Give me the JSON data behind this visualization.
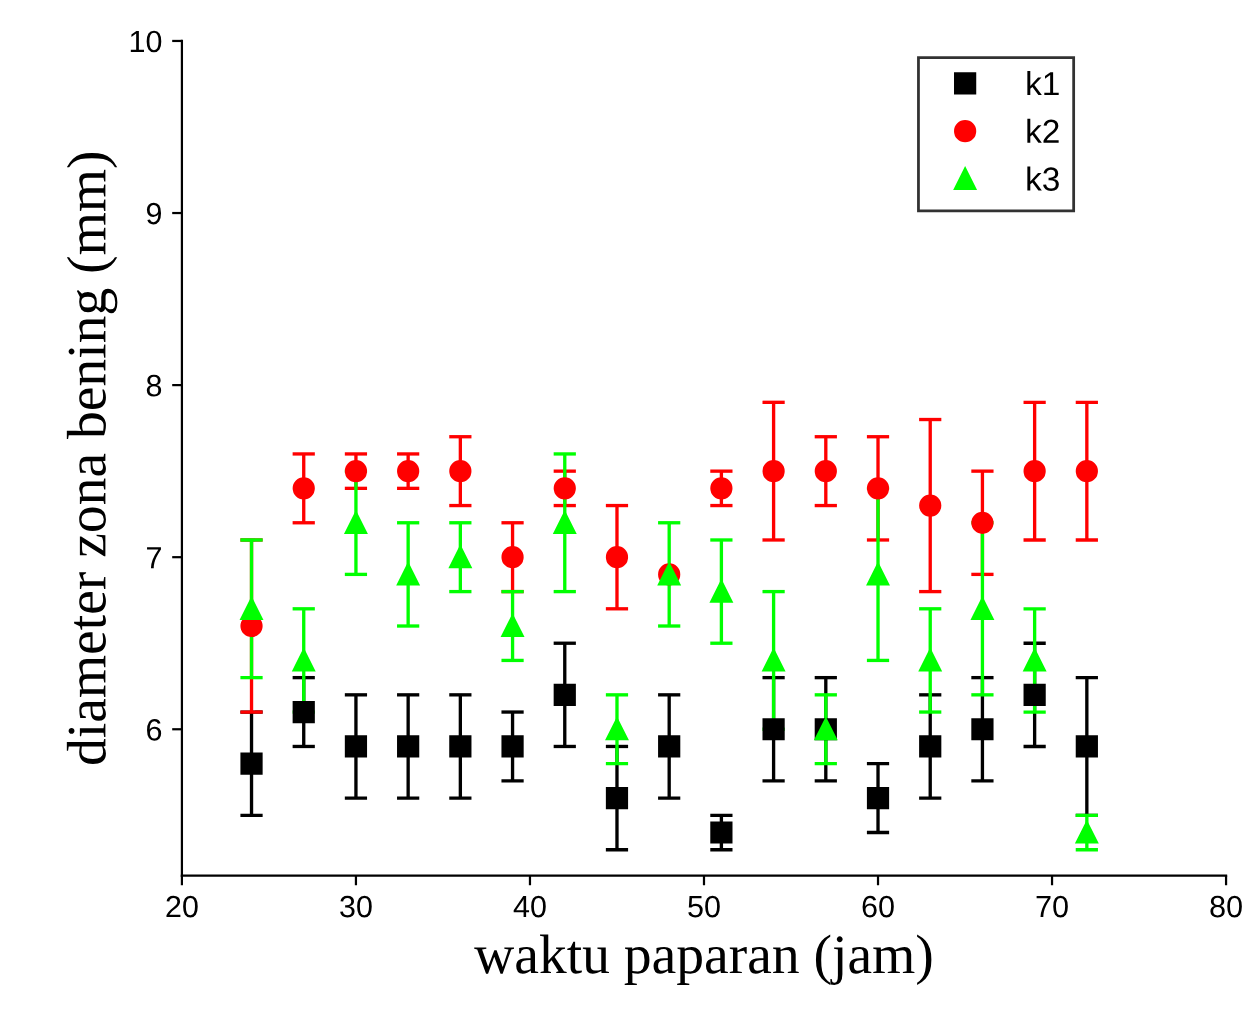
{
  "chart_data": {
    "type": "scatter",
    "xlabel": "waktu paparan (jam)",
    "ylabel": "diameter zona bening (mm)",
    "x": [
      24,
      27,
      30,
      33,
      36,
      39,
      42,
      45,
      48,
      51,
      54,
      57,
      60,
      63,
      66,
      69,
      72
    ],
    "xlim": [
      20,
      80
    ],
    "xticks": [
      20,
      30,
      40,
      50,
      60,
      70,
      80
    ],
    "ylim": [
      5.15,
      10
    ],
    "yticks": [
      6,
      7,
      8,
      9,
      10
    ],
    "legend": "top right",
    "grid": false,
    "series": [
      {
        "name": "k1",
        "color": "#000000",
        "marker": "square",
        "values": [
          5.8,
          6.1,
          5.9,
          5.9,
          5.9,
          5.9,
          6.2,
          5.6,
          5.9,
          5.4,
          6.0,
          6.0,
          5.6,
          5.9,
          6.0,
          6.2,
          5.9
        ],
        "errors": [
          0.3,
          0.2,
          0.3,
          0.3,
          0.3,
          0.2,
          0.3,
          0.3,
          0.3,
          0.1,
          0.3,
          0.3,
          0.2,
          0.3,
          0.3,
          0.3,
          0.4
        ]
      },
      {
        "name": "k2",
        "color": "#ff0000",
        "marker": "circle",
        "values": [
          6.6,
          7.4,
          7.5,
          7.5,
          7.5,
          7.0,
          7.4,
          7.0,
          6.9,
          7.4,
          7.5,
          7.5,
          7.4,
          7.3,
          7.2,
          7.5,
          7.5
        ],
        "errors": [
          0.5,
          0.2,
          0.1,
          0.1,
          0.2,
          0.2,
          0.1,
          0.3,
          null,
          0.1,
          0.4,
          0.2,
          0.3,
          0.5,
          0.3,
          0.4,
          0.4
        ]
      },
      {
        "name": "k3",
        "color": "#00ff00",
        "marker": "triangle",
        "values": [
          6.7,
          6.4,
          7.2,
          6.9,
          7.0,
          6.6,
          7.2,
          6.0,
          6.9,
          6.8,
          6.4,
          6.0,
          6.9,
          6.4,
          6.7,
          6.4,
          5.4
        ],
        "errors": [
          0.4,
          0.3,
          0.3,
          0.3,
          0.2,
          0.2,
          0.4,
          0.2,
          0.3,
          0.3,
          0.4,
          0.2,
          0.5,
          0.3,
          0.5,
          0.3,
          0.1
        ]
      }
    ]
  }
}
